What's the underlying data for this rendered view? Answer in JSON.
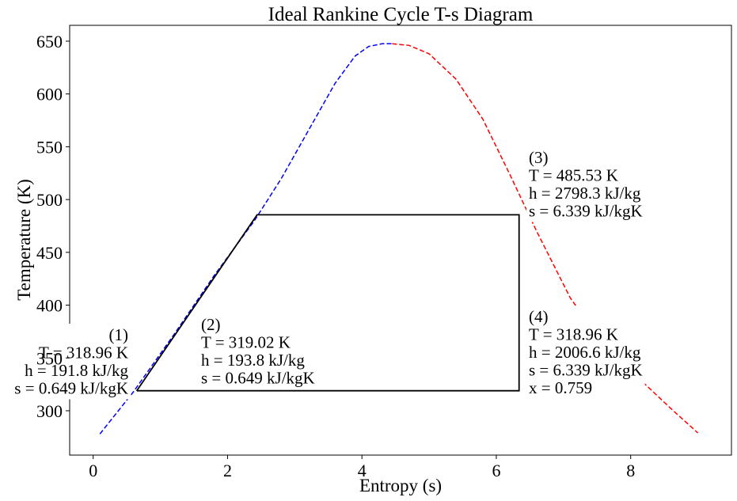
{
  "chart_data": {
    "type": "line",
    "title": "Ideal Rankine Cycle T-s Diagram",
    "xlabel": "Entropy (s)",
    "ylabel": "Temperature (K)",
    "xlim": [
      -0.35,
      9.5
    ],
    "ylim": [
      258,
      665
    ],
    "xticks": [
      "0",
      "2",
      "4",
      "6",
      "8"
    ],
    "yticks": [
      "300",
      "350",
      "400",
      "450",
      "500",
      "550",
      "600",
      "650"
    ],
    "grid": false,
    "series": [
      {
        "color": "#0000ff",
        "style": "dashed",
        "x": [
          0.1,
          0.6,
          1.2,
          1.8,
          2.4,
          2.8,
          3.2,
          3.6,
          3.9,
          4.1,
          4.3,
          4.45
        ],
        "y": [
          278,
          318,
          372,
          428,
          480,
          520,
          565,
          610,
          636,
          645,
          647.5,
          647.5
        ]
      },
      {
        "color": "#ff0000",
        "style": "dashed",
        "x": [
          4.45,
          4.7,
          5.0,
          5.4,
          5.8,
          6.2,
          6.6,
          7.1,
          7.6,
          8.1,
          8.6,
          9.0
        ],
        "y": [
          647.5,
          646,
          638,
          614,
          576,
          524,
          470,
          407,
          362,
          332,
          302,
          279
        ]
      },
      {
        "color": "#000000",
        "style": "solid",
        "x": [
          0.649,
          0.649,
          2.44,
          6.339,
          6.339,
          0.649
        ],
        "y": [
          318.96,
          319.02,
          485.53,
          485.53,
          318.96,
          318.96
        ]
      }
    ],
    "annotations": [
      {
        "label": "(1)",
        "lines": [
          "T = 318.96 K",
          "h = 191.8 kJ/kg",
          "s = 0.649 kJ/kgK"
        ]
      },
      {
        "label": "(2)",
        "lines": [
          "T = 319.02 K",
          "h = 193.8 kJ/kg",
          "s = 0.649 kJ/kgK"
        ]
      },
      {
        "label": "(3)",
        "lines": [
          "T = 485.53 K",
          "h = 2798.3 kJ/kg",
          "s = 6.339 kJ/kgK"
        ]
      },
      {
        "label": "(4)",
        "lines": [
          "T = 318.96 K",
          "h = 2006.6 kJ/kg",
          "s = 6.339 kJ/kgK",
          "x = 0.759"
        ]
      }
    ]
  }
}
